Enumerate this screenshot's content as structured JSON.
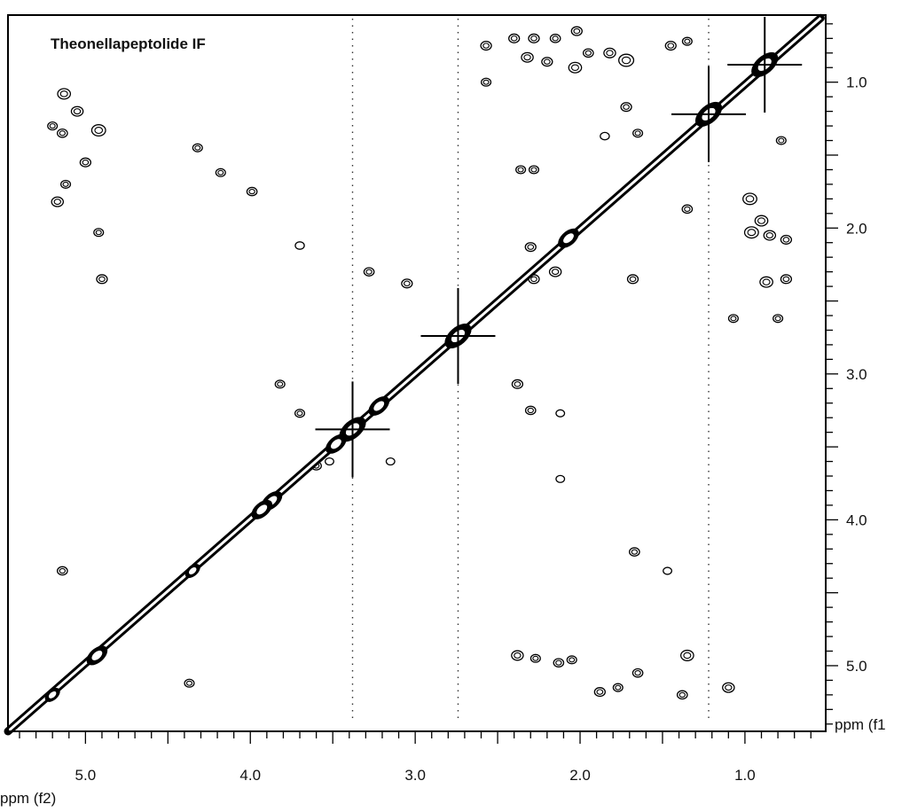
{
  "chart_data": {
    "type": "contour",
    "title": "Theonellapeptolide IF",
    "xlabel": "ppm (f2)",
    "ylabel": "ppm (f1",
    "x_range": [
      5.47,
      0.51
    ],
    "y_range": [
      0.54,
      5.45
    ],
    "x_ticks": [
      5.0,
      4.0,
      3.0,
      2.0,
      1.0
    ],
    "x_tick_labels": [
      "5.0",
      "4.0",
      "3.0",
      "2.0",
      "1.0"
    ],
    "y_ticks": [
      1.0,
      2.0,
      3.0,
      4.0,
      5.0
    ],
    "y_tick_labels": [
      "1.0",
      "2.0",
      "3.0",
      "4.0",
      "5.0"
    ],
    "diagonal": {
      "from": [
        5.47,
        5.45
      ],
      "to": [
        0.54,
        0.56
      ]
    },
    "vertical_streaks_f2": [
      3.38,
      2.74,
      1.22
    ],
    "diagonal_clusters": [
      {
        "f2": 0.88,
        "f1": 0.88,
        "intensity": 3
      },
      {
        "f2": 1.22,
        "f1": 1.22,
        "intensity": 3
      },
      {
        "f2": 2.07,
        "f1": 2.07,
        "intensity": 2
      },
      {
        "f2": 2.74,
        "f1": 2.74,
        "intensity": 3
      },
      {
        "f2": 3.22,
        "f1": 3.22,
        "intensity": 2
      },
      {
        "f2": 3.38,
        "f1": 3.38,
        "intensity": 3
      },
      {
        "f2": 3.48,
        "f1": 3.48,
        "intensity": 2
      },
      {
        "f2": 3.87,
        "f1": 3.87,
        "intensity": 2
      },
      {
        "f2": 3.93,
        "f1": 3.93,
        "intensity": 2
      },
      {
        "f2": 4.35,
        "f1": 4.35,
        "intensity": 1
      },
      {
        "f2": 4.93,
        "f1": 4.93,
        "intensity": 2
      },
      {
        "f2": 5.2,
        "f1": 5.2,
        "intensity": 1
      }
    ],
    "cross_peaks": [
      {
        "f2": 5.13,
        "f1": 1.08,
        "size": 1.4
      },
      {
        "f2": 5.05,
        "f1": 1.2,
        "size": 1.2
      },
      {
        "f2": 5.2,
        "f1": 1.3,
        "size": 0.8
      },
      {
        "f2": 5.14,
        "f1": 1.35,
        "size": 0.9
      },
      {
        "f2": 4.92,
        "f1": 1.33,
        "size": 1.6
      },
      {
        "f2": 5.0,
        "f1": 1.55,
        "size": 1.0
      },
      {
        "f2": 5.12,
        "f1": 1.7,
        "size": 0.8
      },
      {
        "f2": 5.17,
        "f1": 1.82,
        "size": 1.2
      },
      {
        "f2": 4.92,
        "f1": 2.03,
        "size": 0.8
      },
      {
        "f2": 4.9,
        "f1": 2.35,
        "size": 1.0
      },
      {
        "f2": 4.32,
        "f1": 1.45,
        "size": 0.8
      },
      {
        "f2": 4.18,
        "f1": 1.62,
        "size": 0.8
      },
      {
        "f2": 3.99,
        "f1": 1.75,
        "size": 0.9
      },
      {
        "f2": 3.7,
        "f1": 2.12,
        "size": 0.7
      },
      {
        "f2": 3.28,
        "f1": 2.3,
        "size": 0.9
      },
      {
        "f2": 3.05,
        "f1": 2.38,
        "size": 1.0
      },
      {
        "f2": 2.57,
        "f1": 0.75,
        "size": 1.0
      },
      {
        "f2": 2.57,
        "f1": 1.0,
        "size": 0.8
      },
      {
        "f2": 2.4,
        "f1": 0.7,
        "size": 1.0
      },
      {
        "f2": 2.28,
        "f1": 0.7,
        "size": 1.0
      },
      {
        "f2": 2.15,
        "f1": 0.7,
        "size": 0.9
      },
      {
        "f2": 2.02,
        "f1": 0.65,
        "size": 1.0
      },
      {
        "f2": 2.32,
        "f1": 0.83,
        "size": 1.2
      },
      {
        "f2": 2.2,
        "f1": 0.86,
        "size": 1.0
      },
      {
        "f2": 2.03,
        "f1": 0.9,
        "size": 1.4
      },
      {
        "f2": 1.95,
        "f1": 0.8,
        "size": 0.9
      },
      {
        "f2": 1.72,
        "f1": 0.85,
        "size": 1.8
      },
      {
        "f2": 1.82,
        "f1": 0.8,
        "size": 1.2
      },
      {
        "f2": 1.45,
        "f1": 0.75,
        "size": 1.0
      },
      {
        "f2": 1.35,
        "f1": 0.72,
        "size": 0.8
      },
      {
        "f2": 1.72,
        "f1": 1.17,
        "size": 1.0
      },
      {
        "f2": 1.85,
        "f1": 1.37,
        "size": 0.7
      },
      {
        "f2": 1.65,
        "f1": 1.35,
        "size": 0.8
      },
      {
        "f2": 2.36,
        "f1": 1.6,
        "size": 0.8
      },
      {
        "f2": 2.28,
        "f1": 1.6,
        "size": 0.8
      },
      {
        "f2": 2.3,
        "f1": 2.13,
        "size": 1.0
      },
      {
        "f2": 2.28,
        "f1": 2.35,
        "size": 1.0
      },
      {
        "f2": 2.15,
        "f1": 2.3,
        "size": 1.2
      },
      {
        "f2": 1.68,
        "f1": 2.35,
        "size": 1.0
      },
      {
        "f2": 1.35,
        "f1": 1.87,
        "size": 0.9
      },
      {
        "f2": 0.97,
        "f1": 1.8,
        "size": 1.6
      },
      {
        "f2": 0.9,
        "f1": 1.95,
        "size": 1.4
      },
      {
        "f2": 0.96,
        "f1": 2.03,
        "size": 1.6
      },
      {
        "f2": 0.85,
        "f1": 2.05,
        "size": 1.2
      },
      {
        "f2": 0.75,
        "f1": 2.08,
        "size": 1.0
      },
      {
        "f2": 0.87,
        "f1": 2.37,
        "size": 1.4
      },
      {
        "f2": 0.75,
        "f1": 2.35,
        "size": 1.0
      },
      {
        "f2": 1.07,
        "f1": 2.62,
        "size": 0.8
      },
      {
        "f2": 0.8,
        "f1": 2.62,
        "size": 0.8
      },
      {
        "f2": 0.78,
        "f1": 1.4,
        "size": 0.8
      },
      {
        "f2": 3.82,
        "f1": 3.07,
        "size": 0.8
      },
      {
        "f2": 3.7,
        "f1": 3.27,
        "size": 0.8
      },
      {
        "f2": 2.38,
        "f1": 3.07,
        "size": 1.0
      },
      {
        "f2": 2.3,
        "f1": 3.25,
        "size": 0.9
      },
      {
        "f2": 2.12,
        "f1": 3.27,
        "size": 0.6
      },
      {
        "f2": 3.6,
        "f1": 3.63,
        "size": 0.9
      },
      {
        "f2": 3.52,
        "f1": 3.6,
        "size": 0.6
      },
      {
        "f2": 2.12,
        "f1": 3.72,
        "size": 0.6
      },
      {
        "f2": 1.67,
        "f1": 4.22,
        "size": 0.9
      },
      {
        "f2": 1.47,
        "f1": 4.35,
        "size": 0.6
      },
      {
        "f2": 2.38,
        "f1": 4.93,
        "size": 1.2
      },
      {
        "f2": 2.27,
        "f1": 4.95,
        "size": 0.8
      },
      {
        "f2": 2.13,
        "f1": 4.98,
        "size": 0.9
      },
      {
        "f2": 2.05,
        "f1": 4.96,
        "size": 0.8
      },
      {
        "f2": 1.35,
        "f1": 4.93,
        "size": 1.4
      },
      {
        "f2": 1.65,
        "f1": 5.05,
        "size": 0.9
      },
      {
        "f2": 1.88,
        "f1": 5.18,
        "size": 1.0
      },
      {
        "f2": 1.77,
        "f1": 5.15,
        "size": 0.8
      },
      {
        "f2": 1.1,
        "f1": 5.15,
        "size": 1.2
      },
      {
        "f2": 1.38,
        "f1": 5.2,
        "size": 0.9
      },
      {
        "f2": 5.14,
        "f1": 4.35,
        "size": 0.9
      },
      {
        "f2": 4.37,
        "f1": 5.12,
        "size": 0.8
      },
      {
        "f2": 3.15,
        "f1": 3.6,
        "size": 0.6
      }
    ]
  }
}
